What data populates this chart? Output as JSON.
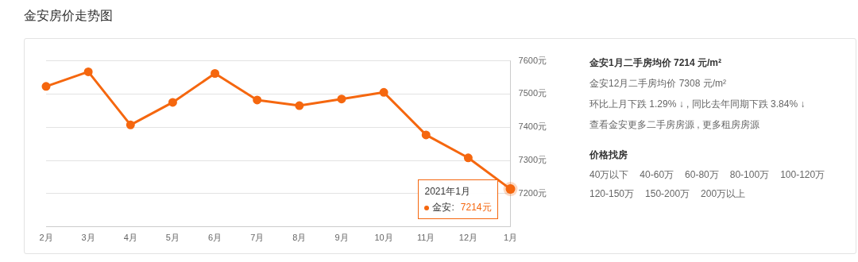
{
  "chart_data": [
    {
      "type": "line",
      "title": "金安房价走势图",
      "categories": [
        "2月",
        "3月",
        "4月",
        "5月",
        "6月",
        "7月",
        "8月",
        "9月",
        "10月",
        "11月",
        "12月",
        "1月"
      ],
      "series": [
        {
          "color": "#f5670f",
          "values": [
            7523,
            7567,
            7407,
            7475,
            7562,
            7482,
            7465,
            7485,
            7505,
            7377,
            7308,
            7214
          ]
        }
      ],
      "ylim": [
        7100,
        7600
      ],
      "yticks": [
        {
          "value": 7100,
          "label": null
        },
        {
          "value": 7200,
          "label": "7200元"
        },
        {
          "value": 7300,
          "label": "7300元"
        },
        {
          "value": 7400,
          "label": "7400元"
        },
        {
          "value": 7500,
          "label": "7500元"
        },
        {
          "value": 7600,
          "label": "7600元"
        }
      ],
      "grid": "y",
      "legend": false,
      "marker": "circle",
      "line_style": "solid",
      "annotations": [
        "2021年1月",
        {
          "text": "金安: 7214元",
          "x": "1月",
          "y": 7214
        }
      ]
    },
    {
      "type": "other",
      "title": "价格找房",
      "annotations": [
        "金安1月二手房均价 7214 元/m²",
        "金安12月二手房均价 7308 元/m²",
        "环比上月下跌 1.29% ↓ , 同比去年同期下跌 3.84% ↓",
        "查看金安更多二手房房源 , 更多租房房源",
        "40万以下",
        "40-60万",
        "60-80万",
        "80-100万",
        "100-120万",
        "120-150万",
        "150-200万",
        "200万以上"
      ]
    }
  ]
}
